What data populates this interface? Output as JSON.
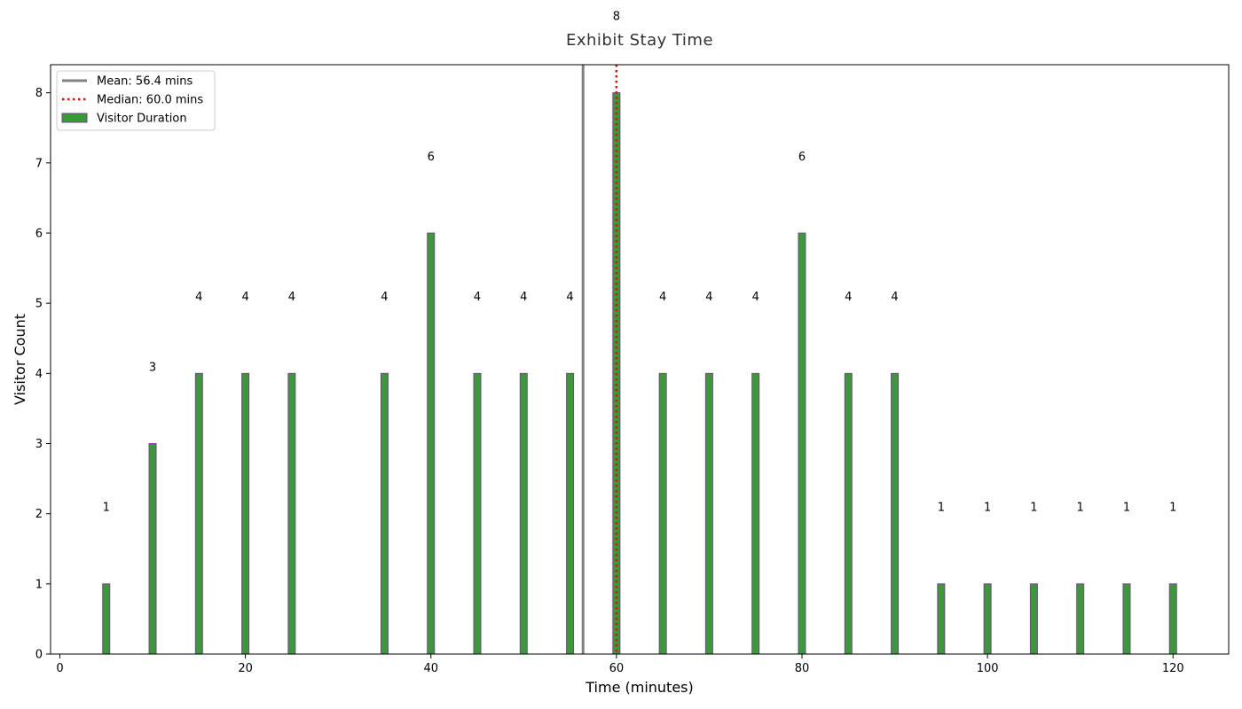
{
  "chart_data": {
    "type": "bar",
    "title": "Exhibit Stay Time",
    "xlabel": "Time (minutes)",
    "ylabel": "Visitor Count",
    "xlim": [
      -1,
      126
    ],
    "ylim": [
      0,
      8.4
    ],
    "xticks": [
      0,
      20,
      40,
      60,
      80,
      100,
      120
    ],
    "yticks": [
      0,
      1,
      2,
      3,
      4,
      5,
      6,
      7,
      8
    ],
    "grid": false,
    "legend_position": "upper-left",
    "series": [
      {
        "name": "Visitor Duration",
        "color": "#3a9a35",
        "edge_color": "#7b3f9e",
        "x": [
          5,
          10,
          15,
          20,
          25,
          35,
          40,
          45,
          50,
          55,
          60,
          65,
          70,
          75,
          80,
          85,
          90,
          95,
          100,
          105,
          110,
          115,
          120
        ],
        "values": [
          1,
          3,
          4,
          4,
          4,
          4,
          6,
          4,
          4,
          4,
          8,
          4,
          4,
          4,
          6,
          4,
          4,
          1,
          1,
          1,
          1,
          1,
          1
        ],
        "labels": [
          "1",
          "3",
          "4",
          "4",
          "4",
          "4",
          "6",
          "4",
          "4",
          "4",
          "8",
          "4",
          "4",
          "4",
          "6",
          "4",
          "4",
          "1",
          "1",
          "1",
          "1",
          "1",
          "1"
        ]
      }
    ],
    "reference_lines": [
      {
        "name": "Mean: 56.4 mins",
        "x": 56.4,
        "color": "#808080",
        "style": "solid"
      },
      {
        "name": "Median: 60.0 mins",
        "x": 60.0,
        "color": "#ff0000",
        "style": "dotted"
      }
    ]
  }
}
